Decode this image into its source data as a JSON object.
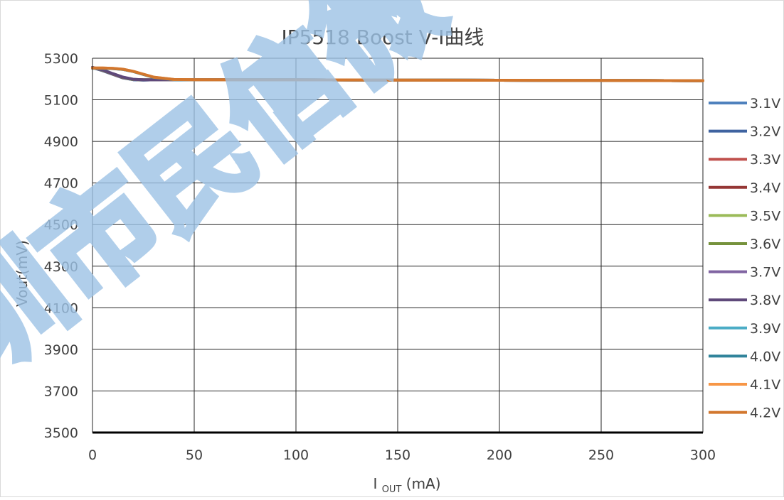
{
  "chart_data": {
    "type": "line",
    "title": "IP5518 Boost V-I曲线",
    "xlabel_main": "I",
    "xlabel_sub": "OUT",
    "xlabel_unit": "(mA)",
    "ylabel": "Vout(mV)",
    "xlim": [
      0,
      300
    ],
    "ylim": [
      3500,
      5300
    ],
    "x_ticks": [
      0,
      50,
      100,
      150,
      200,
      250,
      300
    ],
    "y_ticks": [
      3500,
      3700,
      3900,
      4100,
      4300,
      4500,
      4700,
      4900,
      5100,
      5300
    ],
    "grid": true,
    "legend_position": "right",
    "watermark": "深圳市民信微",
    "series": [
      {
        "name": "3.1V",
        "color": "#4f81bd",
        "x": [
          0,
          5,
          10,
          15,
          20,
          25,
          30,
          40,
          50,
          75,
          100,
          150,
          200,
          250,
          300
        ],
        "y": [
          5255,
          5240,
          5222,
          5205,
          5197,
          5195,
          5196,
          5197,
          5197,
          5197,
          5196,
          5195,
          5194,
          5193,
          5192
        ]
      },
      {
        "name": "3.2V",
        "color": "#3f63a0",
        "x": [
          0,
          5,
          10,
          15,
          20,
          25,
          30,
          40,
          50,
          75,
          100,
          150,
          200,
          250,
          300
        ],
        "y": [
          5255,
          5241,
          5223,
          5206,
          5197,
          5195,
          5196,
          5197,
          5197,
          5197,
          5196,
          5195,
          5194,
          5193,
          5192
        ]
      },
      {
        "name": "3.3V",
        "color": "#c0504d",
        "x": [
          0,
          5,
          10,
          15,
          20,
          25,
          30,
          40,
          50,
          75,
          100,
          150,
          200,
          250,
          300
        ],
        "y": [
          5256,
          5242,
          5224,
          5207,
          5198,
          5196,
          5196,
          5197,
          5197,
          5197,
          5196,
          5195,
          5194,
          5193,
          5192
        ]
      },
      {
        "name": "3.4V",
        "color": "#953735",
        "x": [
          0,
          5,
          10,
          15,
          20,
          25,
          30,
          40,
          50,
          75,
          100,
          150,
          200,
          250,
          300
        ],
        "y": [
          5256,
          5242,
          5224,
          5207,
          5198,
          5196,
          5196,
          5197,
          5197,
          5197,
          5196,
          5195,
          5194,
          5193,
          5192
        ]
      },
      {
        "name": "3.5V",
        "color": "#9bbb59",
        "x": [
          0,
          5,
          10,
          15,
          20,
          25,
          30,
          40,
          50,
          75,
          100,
          150,
          200,
          250,
          300
        ],
        "y": [
          5256,
          5243,
          5225,
          5208,
          5198,
          5196,
          5196,
          5197,
          5197,
          5197,
          5196,
          5195,
          5194,
          5193,
          5192
        ]
      },
      {
        "name": "3.6V",
        "color": "#76923c",
        "x": [
          0,
          5,
          10,
          15,
          20,
          25,
          30,
          40,
          50,
          75,
          100,
          150,
          200,
          250,
          300
        ],
        "y": [
          5256,
          5243,
          5225,
          5208,
          5198,
          5196,
          5196,
          5197,
          5197,
          5197,
          5196,
          5195,
          5194,
          5193,
          5192
        ]
      },
      {
        "name": "3.7V",
        "color": "#8064a2",
        "x": [
          0,
          5,
          10,
          15,
          20,
          25,
          30,
          40,
          50,
          75,
          100,
          150,
          200,
          250,
          300
        ],
        "y": [
          5256,
          5244,
          5226,
          5209,
          5199,
          5196,
          5196,
          5197,
          5197,
          5197,
          5196,
          5195,
          5194,
          5193,
          5192
        ]
      },
      {
        "name": "3.8V",
        "color": "#5f497a",
        "x": [
          0,
          5,
          10,
          15,
          20,
          25,
          30,
          40,
          50,
          75,
          100,
          150,
          200,
          250,
          300
        ],
        "y": [
          5256,
          5244,
          5226,
          5209,
          5199,
          5196,
          5196,
          5197,
          5197,
          5197,
          5196,
          5195,
          5194,
          5193,
          5192
        ]
      },
      {
        "name": "3.9V",
        "color": "#4bacc6",
        "x": [
          0,
          5,
          10,
          15,
          20,
          25,
          30,
          40,
          50,
          75,
          100,
          150,
          200,
          250,
          300
        ],
        "y": [
          5252,
          5252,
          5250,
          5246,
          5236,
          5222,
          5208,
          5197,
          5196,
          5196,
          5196,
          5195,
          5194,
          5193,
          5192
        ]
      },
      {
        "name": "4.0V",
        "color": "#31849b",
        "x": [
          0,
          5,
          10,
          15,
          20,
          25,
          30,
          40,
          50,
          75,
          100,
          150,
          200,
          250,
          300
        ],
        "y": [
          5252,
          5252,
          5250,
          5246,
          5236,
          5222,
          5208,
          5197,
          5196,
          5196,
          5196,
          5195,
          5194,
          5193,
          5192
        ]
      },
      {
        "name": "4.1V",
        "color": "#f79646",
        "x": [
          0,
          5,
          10,
          15,
          20,
          25,
          30,
          40,
          50,
          75,
          100,
          150,
          200,
          250,
          300
        ],
        "y": [
          5253,
          5253,
          5251,
          5247,
          5237,
          5223,
          5209,
          5198,
          5197,
          5196,
          5196,
          5195,
          5194,
          5193,
          5192
        ]
      },
      {
        "name": "4.2V",
        "color": "#d2772e",
        "x": [
          0,
          5,
          10,
          15,
          20,
          25,
          30,
          40,
          50,
          75,
          100,
          150,
          200,
          250,
          300
        ],
        "y": [
          5253,
          5253,
          5251,
          5247,
          5237,
          5223,
          5209,
          5198,
          5197,
          5196,
          5196,
          5195,
          5194,
          5193,
          5192
        ]
      }
    ]
  }
}
